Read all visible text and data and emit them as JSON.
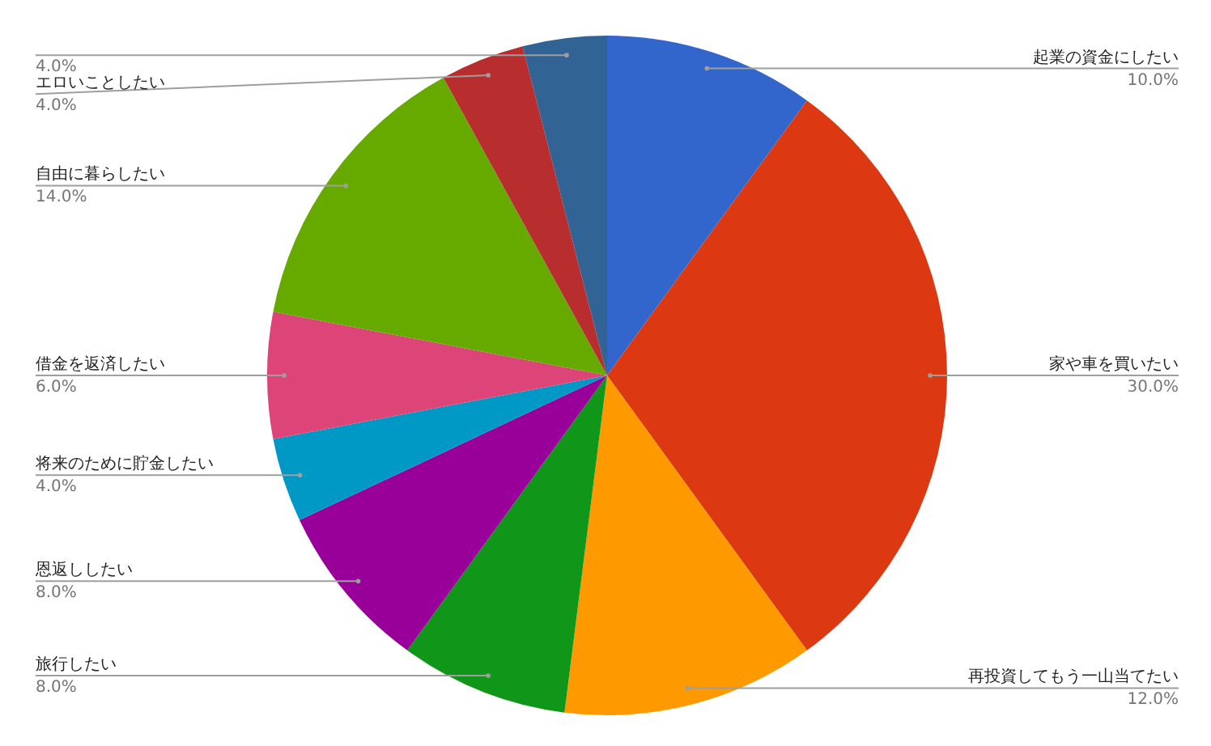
{
  "chart_data": {
    "type": "pie",
    "categories": [
      "起業の資金にしたい",
      "家や車を買いたい",
      "再投資してもう一山当てたい",
      "旅行したい",
      "恩返ししたい",
      "将来のために貯金したい",
      "借金を返済したい",
      "自由に暮らしたい",
      "エロいことしたい",
      null
    ],
    "values": [
      10,
      30,
      12,
      8,
      8,
      4,
      6,
      14,
      4,
      4
    ],
    "value_labels": [
      "10.0%",
      "30.0%",
      "12.0%",
      "8.0%",
      "8.0%",
      "4.0%",
      "6.0%",
      "14.0%",
      "4.0%",
      "4.0%"
    ],
    "colors": [
      "#3366cc",
      "#dc3912",
      "#ff9900",
      "#109618",
      "#990099",
      "#0099c6",
      "#dd4477",
      "#66aa00",
      "#b82e2e",
      "#316395"
    ]
  }
}
